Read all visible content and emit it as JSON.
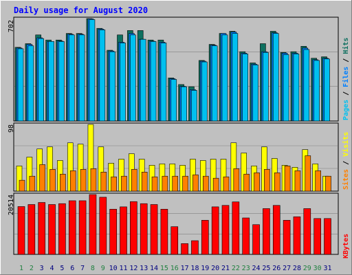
{
  "chart_data": [
    {
      "type": "bar",
      "title": "Daily usage for August 2020",
      "panel": "top",
      "y_max_label": "702",
      "ylim": [
        0,
        702
      ],
      "right_label_parts": [
        {
          "text": "Pages",
          "color": "#00c0f0"
        },
        {
          "text": " / ",
          "color": "#000000"
        },
        {
          "text": "Files",
          "color": "#0080ff"
        },
        {
          "text": " / ",
          "color": "#000000"
        },
        {
          "text": "Hits",
          "color": "#0e7060"
        }
      ],
      "categories": [
        "1",
        "2",
        "3",
        "4",
        "5",
        "6",
        "7",
        "8",
        "9",
        "10",
        "11",
        "12",
        "13",
        "14",
        "15",
        "16",
        "17",
        "18",
        "19",
        "20",
        "21",
        "22",
        "23",
        "24",
        "25",
        "26",
        "27",
        "28",
        "29",
        "30",
        "31"
      ],
      "series": [
        {
          "name": "Hits",
          "color": "#0e7060",
          "values": [
            505,
            530,
            590,
            555,
            555,
            600,
            600,
            702,
            635,
            485,
            590,
            620,
            620,
            555,
            555,
            295,
            250,
            235,
            415,
            525,
            600,
            615,
            475,
            398,
            530,
            615,
            470,
            475,
            512,
            430,
            440
          ]
        },
        {
          "name": "Files",
          "color": "#0080ff",
          "values": [
            500,
            525,
            570,
            545,
            548,
            595,
            595,
            700,
            630,
            480,
            540,
            600,
            560,
            547,
            540,
            290,
            238,
            215,
            410,
            520,
            600,
            610,
            465,
            390,
            475,
            605,
            465,
            465,
            500,
            420,
            430
          ]
        },
        {
          "name": "Pages",
          "color": "#00c0f0",
          "values": [
            495,
            515,
            565,
            545,
            545,
            590,
            590,
            695,
            625,
            475,
            535,
            590,
            560,
            545,
            535,
            285,
            235,
            210,
            405,
            515,
            590,
            600,
            460,
            385,
            470,
            600,
            455,
            460,
            490,
            415,
            425
          ]
        }
      ]
    },
    {
      "type": "bar",
      "panel": "middle",
      "y_max_label": "98",
      "ylim": [
        0,
        98
      ],
      "right_label_parts": [
        {
          "text": "Sites",
          "color": "#ff8000"
        },
        {
          "text": " / ",
          "color": "#000000"
        },
        {
          "text": "Visits",
          "color": "#ffff00"
        }
      ],
      "series": [
        {
          "name": "Visits",
          "color": "#ffff00",
          "values": [
            37,
            50,
            62,
            65,
            45,
            71,
            69,
            98,
            65,
            41,
            47,
            55,
            47,
            38,
            40,
            40,
            38,
            47,
            45,
            47,
            47,
            71,
            56,
            37,
            65,
            48,
            38,
            35,
            61,
            40,
            22
          ]
        },
        {
          "name": "Sites",
          "color": "#ff8000",
          "values": [
            16,
            22,
            39,
            32,
            25,
            30,
            32,
            33,
            28,
            21,
            22,
            32,
            28,
            21,
            22,
            22,
            22,
            24,
            22,
            19,
            21,
            33,
            25,
            27,
            32,
            27,
            37,
            30,
            52,
            30,
            22
          ]
        }
      ]
    },
    {
      "type": "bar",
      "panel": "bottom",
      "y_max_label": "20514",
      "ylim": [
        0,
        20514
      ],
      "right_label_parts": [
        {
          "text": "KBytes",
          "color": "#ff0000"
        }
      ],
      "series": [
        {
          "name": "KBytes",
          "color": "#ff0000",
          "values": [
            16400,
            17100,
            17800,
            17100,
            17400,
            18400,
            18400,
            20514,
            19600,
            15500,
            16300,
            18100,
            17400,
            17100,
            15500,
            9500,
            3700,
            4700,
            11700,
            16300,
            16800,
            18000,
            12500,
            10200,
            15700,
            16800,
            11700,
            12900,
            15700,
            12300,
            12300
          ]
        }
      ]
    }
  ],
  "highlight_day_color": "#208040",
  "normal_day_color": "#000080",
  "weekend_days": [
    "1",
    "2",
    "8",
    "9",
    "15",
    "16",
    "22",
    "23",
    "29",
    "30"
  ]
}
